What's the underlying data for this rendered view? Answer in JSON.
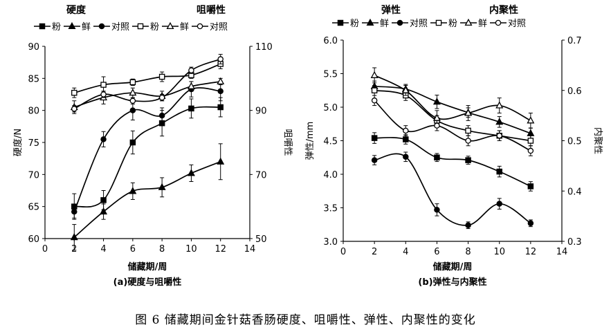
{
  "caption": "图 6   储藏期间金针菇香肠硬度、咀嚼性、弹性、内聚性的变化",
  "chart_data": [
    {
      "type": "line",
      "panel_label": "(a)硬度与咀嚼性",
      "xlabel": "储藏期/周",
      "xlim": [
        0,
        14
      ],
      "xticks": [
        0,
        2,
        4,
        6,
        8,
        10,
        12,
        14
      ],
      "x": [
        2,
        4,
        6,
        8,
        10,
        12
      ],
      "left_axis": {
        "title": "硬度",
        "label": "硬度/N",
        "ylim": [
          60,
          90
        ],
        "ticks": [
          60,
          65,
          70,
          75,
          80,
          85,
          90
        ]
      },
      "right_axis": {
        "title": "咀嚼性",
        "label": "咀嚼性",
        "ylim": [
          50,
          110
        ],
        "ticks": [
          50,
          70,
          90,
          110
        ]
      },
      "series": [
        {
          "name": "粉",
          "axis": "left",
          "marker": "square-filled",
          "values": [
            65.0,
            66.0,
            75.0,
            78.0,
            80.3,
            80.5
          ],
          "errors": [
            2.0,
            1.5,
            1.8,
            2.0,
            1.5,
            1.5
          ]
        },
        {
          "name": "鲜",
          "axis": "left",
          "marker": "triangle-filled",
          "values": [
            60.2,
            64.2,
            67.4,
            68.0,
            70.2,
            72.0
          ],
          "errors": [
            2.0,
            1.2,
            1.3,
            1.5,
            1.3,
            2.8
          ]
        },
        {
          "name": "对照",
          "axis": "left",
          "marker": "circle-filled",
          "values": [
            64.2,
            75.5,
            80.0,
            79.2,
            83.3,
            83.0
          ],
          "errors": [
            1.0,
            1.2,
            1.5,
            1.2,
            1.2,
            1.5
          ]
        },
        {
          "name": "粉",
          "axis": "right",
          "marker": "square-open",
          "values": [
            95.5,
            98.0,
            98.8,
            100.5,
            101.0,
            104.5
          ],
          "errors": [
            1.5,
            2.5,
            1.0,
            1.5,
            1.0,
            1.5
          ]
        },
        {
          "name": "鲜",
          "axis": "right",
          "marker": "triangle-open",
          "values": [
            91.0,
            94.0,
            95.5,
            94.5,
            97.5,
            99.0
          ],
          "errors": [
            2.0,
            2.0,
            1.5,
            1.5,
            1.5,
            1.0
          ]
        },
        {
          "name": "对照",
          "axis": "right",
          "marker": "circle-open",
          "values": [
            90.5,
            95.0,
            93.0,
            94.0,
            102.5,
            106.0
          ],
          "errors": [
            1.0,
            1.0,
            1.0,
            1.0,
            1.0,
            1.5
          ]
        }
      ]
    },
    {
      "type": "line",
      "panel_label": "(b)弹性与内聚性",
      "xlabel": "储藏期/周",
      "xlim": [
        0,
        14
      ],
      "xticks": [
        0,
        2,
        4,
        6,
        8,
        10,
        12,
        14
      ],
      "x": [
        2,
        4,
        6,
        8,
        10,
        12
      ],
      "left_axis": {
        "title": "弹性",
        "label": "弹性/mm",
        "ylim": [
          3.0,
          6.0
        ],
        "ticks": [
          "3.0",
          "3.5",
          "4.0",
          "4.5",
          "5.0",
          "5.5",
          "6.0"
        ]
      },
      "right_axis": {
        "title": "内聚性",
        "label": "内聚性",
        "ylim": [
          0.3,
          0.7
        ],
        "ticks": [
          "0.3",
          "0.4",
          "0.5",
          "0.6",
          "0.7"
        ]
      },
      "series": [
        {
          "name": "粉",
          "axis": "left",
          "marker": "square-filled",
          "values": [
            4.54,
            4.52,
            4.25,
            4.21,
            4.04,
            3.82
          ],
          "errors": [
            0.08,
            0.07,
            0.06,
            0.06,
            0.08,
            0.07
          ]
        },
        {
          "name": "鲜",
          "axis": "left",
          "marker": "triangle-filled",
          "values": [
            5.31,
            5.27,
            5.08,
            4.92,
            4.78,
            4.61
          ],
          "errors": [
            0.08,
            0.07,
            0.1,
            0.07,
            0.08,
            0.08
          ]
        },
        {
          "name": "对照",
          "axis": "left",
          "marker": "circle-filled",
          "values": [
            4.21,
            4.26,
            3.47,
            3.24,
            3.56,
            3.27
          ],
          "errors": [
            0.07,
            0.07,
            0.09,
            0.05,
            0.08,
            0.05
          ]
        },
        {
          "name": "粉",
          "axis": "right",
          "marker": "square-open",
          "values": [
            0.6,
            0.59,
            0.54,
            0.52,
            0.51,
            0.5
          ],
          "errors": [
            0.01,
            0.01,
            0.01,
            0.01,
            0.01,
            0.01
          ]
        },
        {
          "name": "鲜",
          "axis": "right",
          "marker": "triangle-open",
          "values": [
            0.63,
            0.6,
            0.545,
            0.555,
            0.57,
            0.54
          ],
          "errors": [
            0.015,
            0.01,
            0.015,
            0.015,
            0.015,
            0.015
          ]
        },
        {
          "name": "对照",
          "axis": "right",
          "marker": "circle-open",
          "values": [
            0.58,
            0.52,
            0.53,
            0.5,
            0.51,
            0.48
          ],
          "errors": [
            0.01,
            0.01,
            0.01,
            0.01,
            0.01,
            0.01
          ]
        }
      ]
    }
  ]
}
